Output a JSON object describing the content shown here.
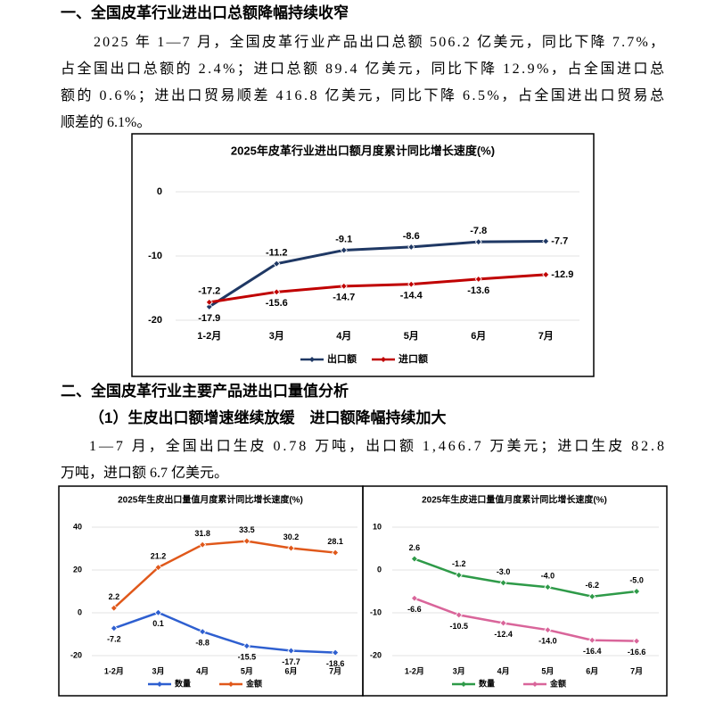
{
  "heading1": "一、全国皮革行业进出口总额降幅持续收窄",
  "paragraph1": [
    "2025 年 1—7 月，全国皮革行业产品出口总额 506.2 亿美元，同比下降 7.7%，",
    "占全国出口总额的 2.4%；进口总额 89.4 亿美元，同比下降 12.9%，占全国进口总",
    "额的 0.6%；进出口贸易顺差 416.8 亿美元，同比下降 6.5%，占全国进出口贸易总",
    "顺差的 6.1%。"
  ],
  "heading2": "二、全国皮革行业主要产品进出口量值分析",
  "subheading": "（1）生皮出口额增速继续放缓　进口额降幅持续加大",
  "paragraph2": [
    "1—7 月，全国出口生皮 0.78 万吨，出口额 1,466.7 万美元；进口生皮 82.8",
    "万吨，进口额 6.7 亿美元。"
  ],
  "chart_data": [
    {
      "type": "line",
      "title": "2025年皮革行业进出口额月度累计同比增长速度(%)",
      "categories": [
        "1-2月",
        "3月",
        "4月",
        "5月",
        "6月",
        "7月"
      ],
      "ylim": [
        -20,
        0
      ],
      "yticks": [
        0,
        -10,
        -20
      ],
      "grid": true,
      "legend": "bottom",
      "series": [
        {
          "name": "出口额",
          "color": "#1f3864",
          "values": [
            -17.9,
            -11.2,
            -9.1,
            -8.6,
            -7.8,
            -7.7
          ]
        },
        {
          "name": "进口额",
          "color": "#c00000",
          "values": [
            -17.2,
            -15.6,
            -14.7,
            -14.4,
            -13.6,
            -12.9
          ]
        }
      ]
    },
    {
      "type": "line",
      "title": "2025年生皮出口量值月度累计同比增长速度(%)",
      "categories": [
        "1-2月",
        "3月",
        "4月",
        "5月",
        "6月",
        "7月"
      ],
      "ylim": [
        -20,
        40
      ],
      "yticks": [
        40,
        20,
        0,
        -20
      ],
      "grid": true,
      "legend": "bottom",
      "series": [
        {
          "name": "数量",
          "color": "#2e5fd0",
          "values": [
            -7.2,
            0.1,
            -8.8,
            -15.5,
            -17.7,
            -18.6
          ]
        },
        {
          "name": "金额",
          "color": "#e0581a",
          "values": [
            2.2,
            21.2,
            31.8,
            33.5,
            30.2,
            28.1
          ]
        }
      ]
    },
    {
      "type": "line",
      "title": "2025年生皮进口量值月度累计同比增长速度(%)",
      "categories": [
        "1-2月",
        "3月",
        "4月",
        "5月",
        "6月",
        "7月"
      ],
      "ylim": [
        -20,
        10
      ],
      "yticks": [
        10,
        0,
        -10,
        -20
      ],
      "grid": true,
      "legend": "bottom",
      "series": [
        {
          "name": "数量",
          "color": "#2e9a48",
          "values": [
            2.6,
            -1.2,
            -3.0,
            -4.0,
            -6.2,
            -5.0
          ],
          "value_labels": [
            "2.6",
            "-1.2",
            "-3.0",
            "-4.0",
            "-6.2",
            "-5.0"
          ]
        },
        {
          "name": "金额",
          "color": "#d9659a",
          "values": [
            -6.6,
            -10.5,
            -12.4,
            -14.0,
            -16.4,
            -16.6
          ],
          "value_labels": [
            "-6.6",
            "-10.5",
            "-12.4",
            "-14.0",
            "-16.4",
            "-16.6"
          ]
        }
      ]
    }
  ]
}
